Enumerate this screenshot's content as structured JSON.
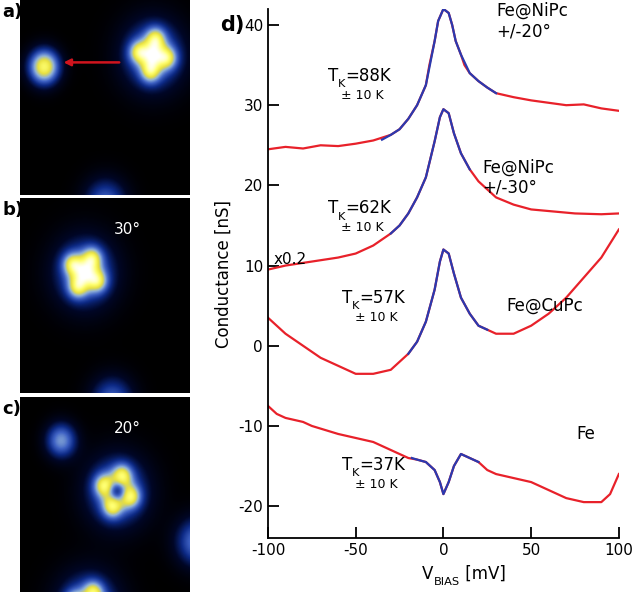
{
  "panels": [
    {
      "label": "a)"
    },
    {
      "label": "b)",
      "angle_text": "30°"
    },
    {
      "label": "c)",
      "angle_text": "20°"
    }
  ],
  "chart_data": {
    "type": "line",
    "label": "d)",
    "xlabel": {
      "base": "V",
      "sub": "BIAS",
      "rest": " [mV]"
    },
    "ylabel": "Conductance [nS]",
    "xlim": [
      -100,
      100
    ],
    "xticks": [
      -100,
      -50,
      0,
      50,
      100
    ],
    "ylim": [
      -24,
      42
    ],
    "yticks": [
      -20,
      -10,
      0,
      10,
      20,
      30,
      40
    ],
    "series": [
      {
        "color": "#e8212a",
        "x": [
          -100,
          -90,
          -80,
          -70,
          -60,
          -50,
          -40,
          -30,
          -25,
          -20,
          -15,
          -10,
          -8,
          -5,
          -3,
          0,
          3,
          5,
          7,
          10,
          12,
          15,
          20,
          25,
          30,
          40,
          50,
          60,
          70,
          80,
          90,
          100
        ],
        "values": [
          24.5,
          24.8,
          24.6,
          25.0,
          24.9,
          25.2,
          25.6,
          26.3,
          27.0,
          28.3,
          30.0,
          32.5,
          35.0,
          38.0,
          40.5,
          42.0,
          41.5,
          40.0,
          38.0,
          36.3,
          35.0,
          34.0,
          33.0,
          32.2,
          31.5,
          31.0,
          30.6,
          30.3,
          30.0,
          30.1,
          29.6,
          29.3
        ]
      },
      {
        "color": "#2a3ab0",
        "x": [
          -35,
          -30,
          -25,
          -20,
          -15,
          -10,
          -5,
          -3,
          0,
          3,
          5,
          7,
          10,
          15,
          20,
          25,
          30
        ],
        "values": [
          25.7,
          26.3,
          27.0,
          28.3,
          30.0,
          32.5,
          38.0,
          40.5,
          42.0,
          41.5,
          40.0,
          38.0,
          36.3,
          34.0,
          33.0,
          32.2,
          31.5
        ]
      },
      {
        "color": "#e8212a",
        "x": [
          -100,
          -90,
          -75,
          -60,
          -50,
          -40,
          -30,
          -25,
          -20,
          -15,
          -10,
          -5,
          -2,
          0,
          3,
          6,
          10,
          15,
          20,
          25,
          30,
          40,
          50,
          60,
          75,
          90,
          100
        ],
        "values": [
          9.5,
          10.0,
          10.5,
          11.0,
          11.5,
          12.5,
          14.0,
          15.0,
          16.5,
          18.5,
          21.0,
          25.5,
          28.5,
          29.5,
          29.0,
          26.5,
          24.0,
          22.0,
          20.5,
          19.5,
          18.5,
          17.6,
          17.0,
          16.8,
          16.5,
          16.4,
          16.5
        ]
      },
      {
        "color": "#2a3ab0",
        "x": [
          -30,
          -25,
          -20,
          -15,
          -10,
          -5,
          -2,
          0,
          3,
          6,
          10,
          15
        ],
        "values": [
          14.0,
          15.0,
          16.5,
          18.5,
          21.0,
          25.5,
          28.5,
          29.5,
          29.0,
          26.5,
          24.0,
          22.0
        ]
      },
      {
        "color": "#e8212a",
        "x": [
          -100,
          -95,
          -90,
          -80,
          -70,
          -60,
          -50,
          -40,
          -30,
          -25,
          -20,
          -15,
          -10,
          -5,
          -2,
          0,
          3,
          6,
          10,
          15,
          20,
          25,
          30,
          40,
          50,
          60,
          70,
          80,
          90,
          100
        ],
        "values": [
          3.5,
          2.5,
          1.5,
          0.0,
          -1.5,
          -2.5,
          -3.5,
          -3.5,
          -3.0,
          -2.0,
          -1.0,
          0.5,
          3.0,
          7.0,
          10.5,
          12.0,
          11.5,
          9.0,
          6.0,
          4.0,
          2.5,
          2.0,
          1.5,
          1.5,
          2.5,
          4.0,
          6.0,
          8.5,
          11.0,
          14.5
        ]
      },
      {
        "color": "#2a3ab0",
        "x": [
          -20,
          -15,
          -10,
          -5,
          -2,
          0,
          3,
          6,
          10,
          15,
          20,
          25
        ],
        "values": [
          -1.0,
          0.5,
          3.0,
          7.0,
          10.5,
          12.0,
          11.5,
          9.0,
          6.0,
          4.0,
          2.5,
          2.0
        ]
      },
      {
        "color": "#e8212a",
        "x": [
          -100,
          -95,
          -90,
          -80,
          -75,
          -60,
          -50,
          -40,
          -30,
          -20,
          -15,
          -10,
          -5,
          -2,
          0,
          3,
          6,
          10,
          15,
          20,
          25,
          30,
          40,
          50,
          60,
          70,
          80,
          90,
          95,
          100
        ],
        "values": [
          -7.5,
          -8.5,
          -9.0,
          -9.5,
          -10.0,
          -11.0,
          -11.5,
          -12.0,
          -13.0,
          -14.0,
          -14.2,
          -14.5,
          -15.5,
          -17.0,
          -18.5,
          -17.0,
          -15.0,
          -13.5,
          -14.0,
          -14.5,
          -15.5,
          -16.0,
          -16.5,
          -17.0,
          -18.0,
          -19.0,
          -19.5,
          -19.5,
          -18.5,
          -16.0
        ]
      },
      {
        "color": "#2a3ab0",
        "x": [
          -18,
          -15,
          -10,
          -5,
          -2,
          0,
          3,
          6,
          10,
          15,
          20
        ],
        "values": [
          -14.0,
          -14.2,
          -14.5,
          -15.5,
          -17.0,
          -18.5,
          -17.0,
          -15.0,
          -13.5,
          -14.0,
          -14.5
        ]
      }
    ],
    "annotations": [
      {
        "text": "Fe@NiPc\n+/-20°"
      },
      {
        "tk": {
          "base": "T",
          "sub": "K",
          "rest": "=88K"
        },
        "note": "± 10 K"
      },
      {
        "text": "Fe@NiPc\n+/-30°"
      },
      {
        "tk": {
          "base": "T",
          "sub": "K",
          "rest": "=62K"
        },
        "note": "± 10 K"
      },
      {
        "text": "x0.2"
      },
      {
        "text": "Fe@CuPc"
      },
      {
        "tk": {
          "base": "T",
          "sub": "K",
          "rest": "=57K"
        },
        "note": "± 10 K"
      },
      {
        "text": "Fe"
      },
      {
        "tk": {
          "base": "T",
          "sub": "K",
          "rest": "=37K"
        },
        "note": "± 10 K"
      }
    ]
  }
}
